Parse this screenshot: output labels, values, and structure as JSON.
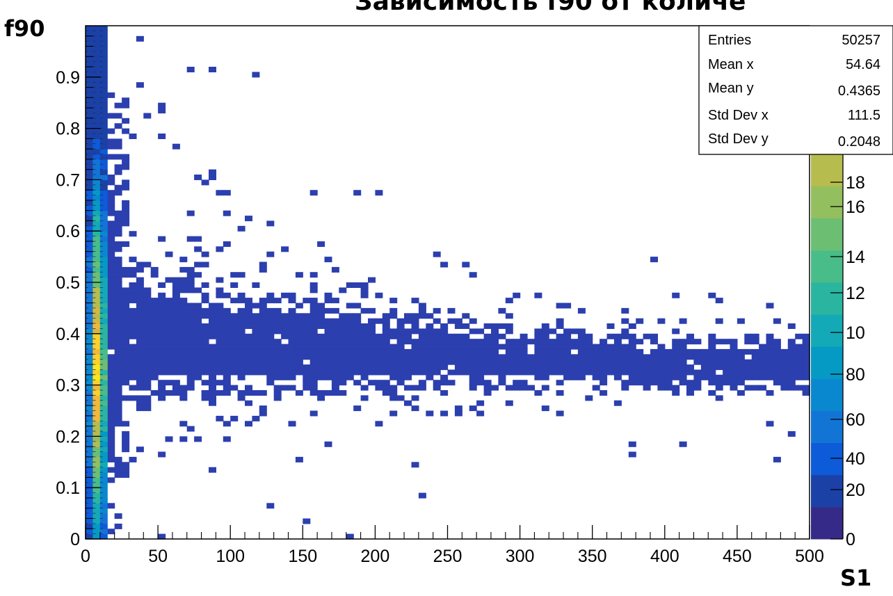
{
  "chart_data": {
    "type": "heatmap",
    "title": "Зависимость f90 от количе",
    "title_overlap": "lo",
    "xlabel": "S1",
    "ylabel": "f90",
    "xlim": [
      0,
      500
    ],
    "ylim": [
      0,
      1
    ],
    "x_ticks": [
      "0",
      "50",
      "100",
      "150",
      "200",
      "250",
      "300",
      "350",
      "400",
      "450",
      "500"
    ],
    "y_ticks": [
      "0",
      "0.1",
      "0.2",
      "0.3",
      "0.4",
      "0.5",
      "0.6",
      "0.7",
      "0.8",
      "0.9"
    ],
    "palette_ticks": [
      "0",
      "20",
      "40",
      "60",
      "80",
      "10",
      "12",
      "14",
      "16",
      "18"
    ],
    "grid": false,
    "colormap": "viridis-like (ROOT kBird)",
    "band_description": {
      "x_centers": [
        5,
        25,
        50,
        75,
        100,
        125,
        150,
        175,
        200,
        225,
        250,
        275,
        300,
        325,
        350,
        375,
        400,
        425,
        450,
        475,
        500
      ],
      "f90_center": [
        0.36,
        0.39,
        0.39,
        0.38,
        0.38,
        0.38,
        0.37,
        0.37,
        0.36,
        0.36,
        0.36,
        0.35,
        0.35,
        0.35,
        0.35,
        0.34,
        0.34,
        0.34,
        0.34,
        0.34,
        0.34
      ],
      "f90_halfwidth": [
        0.5,
        0.12,
        0.1,
        0.09,
        0.08,
        0.08,
        0.07,
        0.07,
        0.06,
        0.06,
        0.05,
        0.05,
        0.05,
        0.05,
        0.04,
        0.04,
        0.04,
        0.04,
        0.04,
        0.04,
        0.04
      ]
    },
    "stats_box": {
      "entries_label": "Entries",
      "entries_value": "50257",
      "mean_x_label": "Mean x",
      "mean_x_value": "54.64",
      "mean_y_label": "Mean y",
      "mean_y_value": "0.4365",
      "std_x_label": "Std Dev x",
      "std_x_value": "111.5",
      "std_y_label": "Std Dev y",
      "std_y_value": "0.2048"
    },
    "colors": {
      "low": "#2c3fae",
      "frame": "#000000"
    },
    "palette_colors": [
      "#352a87",
      "#1b41a7",
      "#0d5bd8",
      "#1275d6",
      "#0a88cf",
      "#059ac3",
      "#14a9b6",
      "#2ab5a0",
      "#48bc89",
      "#6cbf72",
      "#93bf5f",
      "#b7bc4e",
      "#d7b640",
      "#f1b839",
      "#fbd12a",
      "#f9e91c"
    ]
  }
}
